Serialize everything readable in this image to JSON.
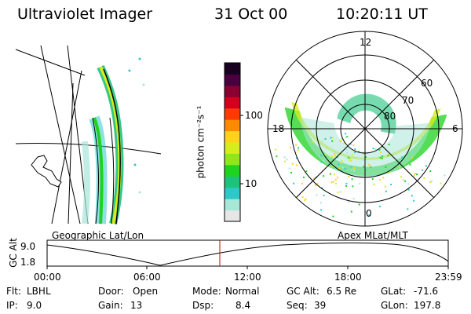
{
  "header": {
    "instrument": "Ultraviolet Imager",
    "date": "31 Oct 00",
    "time": "10:20:11 UT"
  },
  "colorbar": {
    "unit_label": "photon cm⁻²s⁻¹",
    "tick_labels": [
      "100",
      "10"
    ],
    "colors": [
      "#e6e6e6",
      "#a8e6d8",
      "#2ec8c8",
      "#1ec27a",
      "#1ed21e",
      "#8ee61e",
      "#d6ec1e",
      "#ffd21e",
      "#ff8a00",
      "#ff3a00",
      "#d2001e",
      "#8a0030",
      "#4a0040",
      "#1a0020"
    ]
  },
  "left_panel": {
    "caption": "Geographic Lat/Lon"
  },
  "polar_plot": {
    "caption": "Apex MLat/MLT",
    "mlt_labels": {
      "top": "12",
      "left": "18",
      "right": "6",
      "bottom": "0"
    },
    "lat_labels": [
      "60",
      "70",
      "80"
    ]
  },
  "altitude_plot": {
    "ylabel": "GC Alt",
    "yticks": [
      "9.0",
      "1.8"
    ],
    "xticks": [
      "00:00",
      "06:00",
      "12:00",
      "18:00",
      "23:59"
    ],
    "current_time_marker": "10:20",
    "marker_color": "#cc0000"
  },
  "status": {
    "flt_label": "Flt:",
    "flt_value": "LBHL",
    "ip_label": "IP:",
    "ip_value": "9.0",
    "door_label": "Door:",
    "door_value": "Open",
    "gain_label": "Gain:",
    "gain_value": "13",
    "mode_label": "Mode:",
    "mode_value": "Normal",
    "dsp_label": "Dsp:",
    "dsp_value": "8.4",
    "gcalt_label": "GC Alt:",
    "gcalt_value": "6.5 Re",
    "seq_label": "Seq:",
    "seq_value": "39",
    "glat_label": "GLat:",
    "glat_value": "-71.6",
    "glon_label": "GLon:",
    "glon_value": "197.8"
  }
}
